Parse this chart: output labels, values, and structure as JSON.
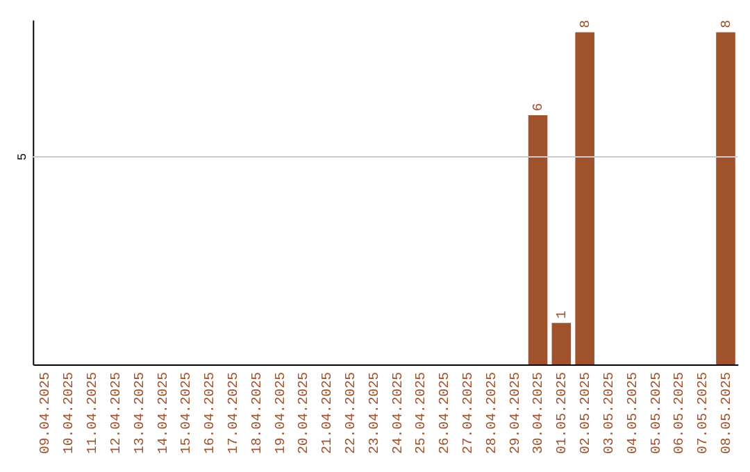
{
  "chart_data": {
    "type": "bar",
    "categories": [
      "09.04.2025",
      "10.04.2025",
      "11.04.2025",
      "12.04.2025",
      "13.04.2025",
      "14.04.2025",
      "15.04.2025",
      "16.04.2025",
      "17.04.2025",
      "18.04.2025",
      "19.04.2025",
      "20.04.2025",
      "21.04.2025",
      "22.04.2025",
      "23.04.2025",
      "24.04.2025",
      "25.04.2025",
      "26.04.2025",
      "27.04.2025",
      "28.04.2025",
      "29.04.2025",
      "30.04.2025",
      "01.05.2025",
      "02.05.2025",
      "03.05.2025",
      "04.05.2025",
      "05.05.2025",
      "06.05.2025",
      "07.05.2025",
      "08.05.2025"
    ],
    "values": [
      null,
      null,
      null,
      null,
      null,
      null,
      null,
      null,
      null,
      null,
      null,
      null,
      null,
      null,
      null,
      null,
      null,
      null,
      null,
      null,
      null,
      6,
      1,
      8,
      null,
      null,
      null,
      null,
      null,
      8
    ],
    "data_labels": true,
    "color": "#a0522d",
    "ylim": [
      0,
      8.3
    ],
    "ref_lines": [
      {
        "axis": "y",
        "value": 5,
        "label": "5",
        "color": "#cccccc"
      }
    ]
  }
}
